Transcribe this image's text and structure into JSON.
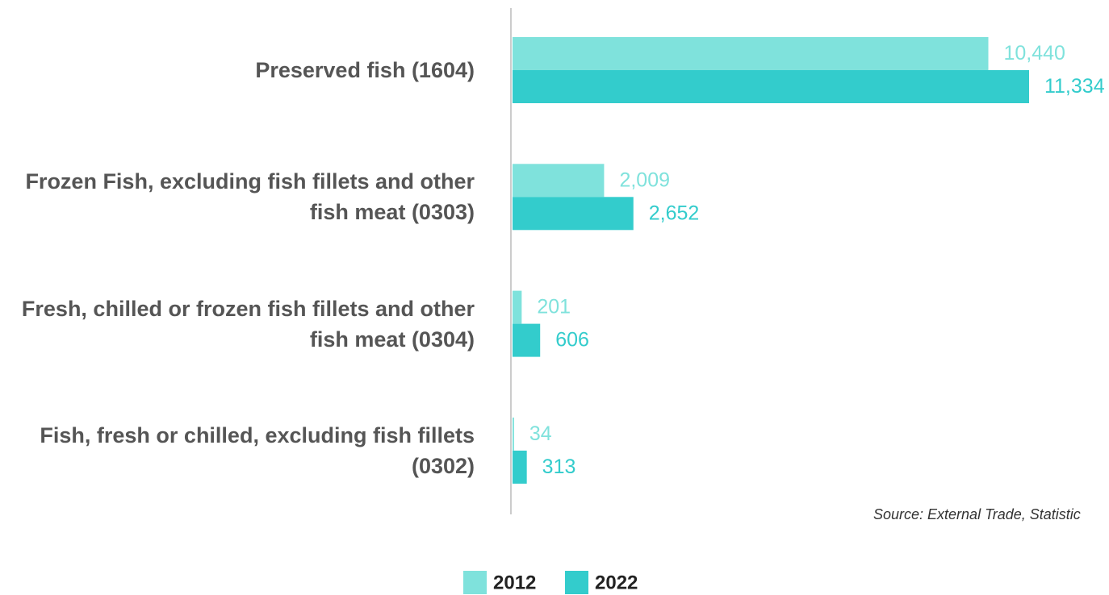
{
  "chart_data": {
    "type": "barh",
    "categories": [
      "Preserved fish (1604)",
      "Frozen Fish, excluding fish fillets and other fish meat (0303)",
      "Fresh, chilled or frozen fish fillets and other fish meat (0304)",
      "Fish, fresh or chilled, excluding fish fillets (0302)"
    ],
    "series": [
      {
        "name": "2012",
        "color": "#7fe2dc",
        "values": [
          10440,
          2009,
          201,
          34
        ],
        "value_labels": [
          "10,440",
          "2,009",
          "201",
          "34"
        ]
      },
      {
        "name": "2022",
        "color": "#33cccc",
        "values": [
          11334,
          2652,
          606,
          313
        ],
        "value_labels": [
          "11,334",
          "2,652",
          "606",
          "313"
        ]
      }
    ],
    "xlim": [
      0,
      12000
    ],
    "source": "Source: External Trade, Statistic",
    "legend": "bottom"
  }
}
